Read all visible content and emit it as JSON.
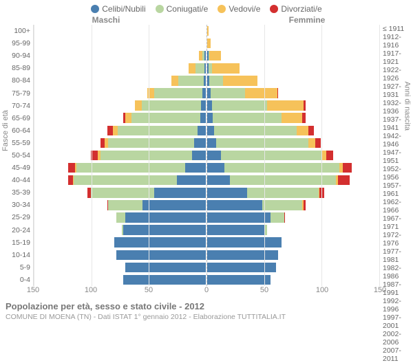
{
  "legend": [
    {
      "label": "Celibi/Nubili",
      "color": "#4a7fb0"
    },
    {
      "label": "Coniugati/e",
      "color": "#b9d6a1"
    },
    {
      "label": "Vedovi/e",
      "color": "#f6c25a"
    },
    {
      "label": "Divorziati/e",
      "color": "#d32f2f"
    }
  ],
  "male_header": "Maschi",
  "female_header": "Femmine",
  "axis_left": "Fasce di età",
  "axis_right": "Anni di nascita",
  "age_labels": [
    "100+",
    "95-99",
    "90-94",
    "85-89",
    "80-84",
    "75-79",
    "70-74",
    "65-69",
    "60-64",
    "55-59",
    "50-54",
    "45-49",
    "40-44",
    "35-39",
    "30-34",
    "25-29",
    "20-24",
    "15-19",
    "10-14",
    "5-9",
    "0-4"
  ],
  "birth_labels": [
    "≤ 1911",
    "1912-1916",
    "1917-1921",
    "1922-1926",
    "1927-1931",
    "1932-1936",
    "1937-1941",
    "1942-1946",
    "1947-1951",
    "1952-1956",
    "1957-1961",
    "1962-1966",
    "1967-1971",
    "1972-1976",
    "1977-1981",
    "1982-1986",
    "1987-1991",
    "1992-1996",
    "1997-2001",
    "2002-2006",
    "2007-2011"
  ],
  "x_ticks": [
    -150,
    -100,
    -50,
    0,
    50,
    100,
    150
  ],
  "x_max": 150,
  "male": [
    {
      "s": 0,
      "co": 0,
      "w": 0,
      "d": 0
    },
    {
      "s": 0,
      "co": 0,
      "w": 0,
      "d": 0
    },
    {
      "s": 1,
      "co": 2,
      "w": 3,
      "d": 0
    },
    {
      "s": 1,
      "co": 8,
      "w": 6,
      "d": 0
    },
    {
      "s": 2,
      "co": 22,
      "w": 6,
      "d": 0
    },
    {
      "s": 3,
      "co": 42,
      "w": 6,
      "d": 0
    },
    {
      "s": 4,
      "co": 52,
      "w": 6,
      "d": 0
    },
    {
      "s": 5,
      "co": 60,
      "w": 5,
      "d": 2
    },
    {
      "s": 7,
      "co": 70,
      "w": 4,
      "d": 5
    },
    {
      "s": 10,
      "co": 75,
      "w": 3,
      "d": 4
    },
    {
      "s": 12,
      "co": 80,
      "w": 2,
      "d": 6
    },
    {
      "s": 18,
      "co": 95,
      "w": 1,
      "d": 6
    },
    {
      "s": 25,
      "co": 90,
      "w": 1,
      "d": 4
    },
    {
      "s": 45,
      "co": 55,
      "w": 0,
      "d": 3
    },
    {
      "s": 55,
      "co": 30,
      "w": 0,
      "d": 1
    },
    {
      "s": 70,
      "co": 8,
      "w": 0,
      "d": 0
    },
    {
      "s": 72,
      "co": 1,
      "w": 0,
      "d": 0
    },
    {
      "s": 80,
      "co": 0,
      "w": 0,
      "d": 0
    },
    {
      "s": 78,
      "co": 0,
      "w": 0,
      "d": 0
    },
    {
      "s": 70,
      "co": 0,
      "w": 0,
      "d": 0
    },
    {
      "s": 72,
      "co": 0,
      "w": 0,
      "d": 0
    }
  ],
  "female": [
    {
      "s": 0,
      "co": 0,
      "w": 1,
      "d": 0
    },
    {
      "s": 0,
      "co": 0,
      "w": 3,
      "d": 0
    },
    {
      "s": 1,
      "co": 1,
      "w": 10,
      "d": 0
    },
    {
      "s": 1,
      "co": 3,
      "w": 24,
      "d": 0
    },
    {
      "s": 2,
      "co": 12,
      "w": 30,
      "d": 0
    },
    {
      "s": 3,
      "co": 30,
      "w": 28,
      "d": 1
    },
    {
      "s": 4,
      "co": 48,
      "w": 32,
      "d": 2
    },
    {
      "s": 5,
      "co": 60,
      "w": 18,
      "d": 3
    },
    {
      "s": 6,
      "co": 72,
      "w": 10,
      "d": 5
    },
    {
      "s": 8,
      "co": 80,
      "w": 6,
      "d": 5
    },
    {
      "s": 12,
      "co": 88,
      "w": 4,
      "d": 6
    },
    {
      "s": 15,
      "co": 100,
      "w": 3,
      "d": 8
    },
    {
      "s": 20,
      "co": 92,
      "w": 2,
      "d": 10
    },
    {
      "s": 35,
      "co": 62,
      "w": 1,
      "d": 4
    },
    {
      "s": 48,
      "co": 35,
      "w": 1,
      "d": 2
    },
    {
      "s": 55,
      "co": 12,
      "w": 0,
      "d": 1
    },
    {
      "s": 50,
      "co": 2,
      "w": 0,
      "d": 0
    },
    {
      "s": 65,
      "co": 0,
      "w": 0,
      "d": 0
    },
    {
      "s": 62,
      "co": 0,
      "w": 0,
      "d": 0
    },
    {
      "s": 60,
      "co": 0,
      "w": 0,
      "d": 0
    },
    {
      "s": 55,
      "co": 0,
      "w": 0,
      "d": 0
    }
  ],
  "title": "Popolazione per età, sesso e stato civile - 2012",
  "subtitle": "COMUNE DI MOENA (TN) - Dati ISTAT 1° gennaio 2012 - Elaborazione TUTTITALIA.IT"
}
